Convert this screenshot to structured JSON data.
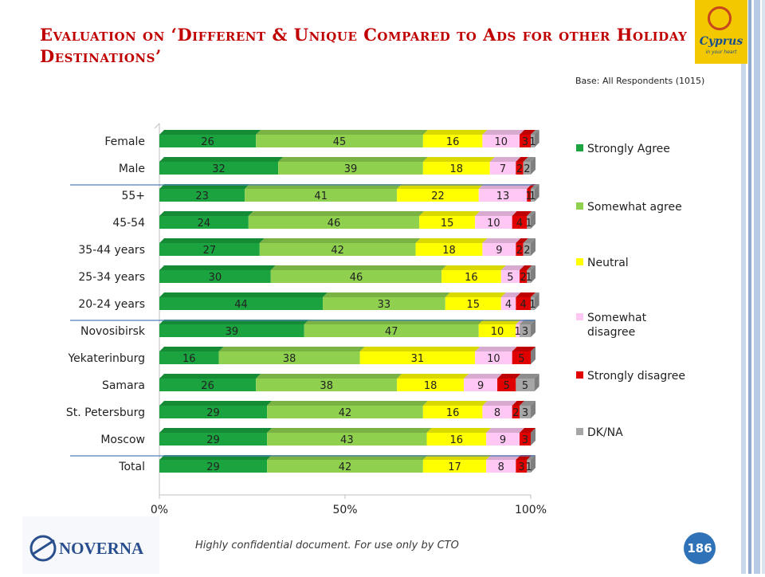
{
  "page": {
    "title": "Evaluation on ‘Different & Unique Compared to Ads for other Holiday Destinations’",
    "base_note": "Base: All Respondents (1015)",
    "footer_text": "Highly confidential document. For use only by CTO",
    "page_number": "186",
    "footer_logo_text": "NOVERNA",
    "brand_logo_text": "Cyprus",
    "brand_logo_tagline": "in your heart"
  },
  "colors": {
    "strongly_agree": "#1aa33f",
    "somewhat_agree": "#8fd14f",
    "neutral": "#ffff00",
    "somewhat_disagree": "#ffc8f4",
    "strongly_disagree": "#e00000",
    "dk_na": "#a6a6a6",
    "title": "#c00000",
    "page_circle": "#2f72b8"
  },
  "chart_data": {
    "type": "bar",
    "orientation": "horizontal",
    "stacked": true,
    "percent": true,
    "categories": [
      "Female",
      "Male",
      "55+",
      "45-54",
      "35-44 years",
      "25-34 years",
      "20-24 years",
      "Novosibirsk",
      "Yekaterinburg",
      "Samara",
      "St. Petersburg",
      "Moscow",
      "Total"
    ],
    "series": [
      {
        "name": "Strongly Agree",
        "values": [
          26,
          32,
          23,
          24,
          27,
          30,
          44,
          39,
          16,
          26,
          29,
          29,
          29
        ]
      },
      {
        "name": "Somewhat agree",
        "values": [
          45,
          39,
          41,
          46,
          42,
          46,
          33,
          47,
          38,
          38,
          42,
          43,
          42
        ]
      },
      {
        "name": "Neutral",
        "values": [
          16,
          18,
          22,
          15,
          18,
          16,
          15,
          10,
          31,
          18,
          16,
          16,
          17
        ]
      },
      {
        "name": "Somewhat disagree",
        "values": [
          10,
          7,
          13,
          10,
          9,
          5,
          4,
          1,
          10,
          9,
          8,
          9,
          8
        ]
      },
      {
        "name": "Strongly disagree",
        "values": [
          3,
          2,
          1,
          4,
          2,
          2,
          4,
          null,
          5,
          5,
          2,
          3,
          3
        ]
      },
      {
        "name": "DK/NA",
        "values": [
          1,
          2,
          1,
          1,
          2,
          1,
          1,
          3,
          null,
          5,
          3,
          null,
          1
        ]
      }
    ],
    "x_ticks": [
      "0%",
      "50%",
      "100%"
    ],
    "xlim": [
      0,
      100
    ],
    "separators_after": [
      "Male",
      "20-24 years",
      "Moscow"
    ],
    "legend_position": "right",
    "grid": false
  }
}
